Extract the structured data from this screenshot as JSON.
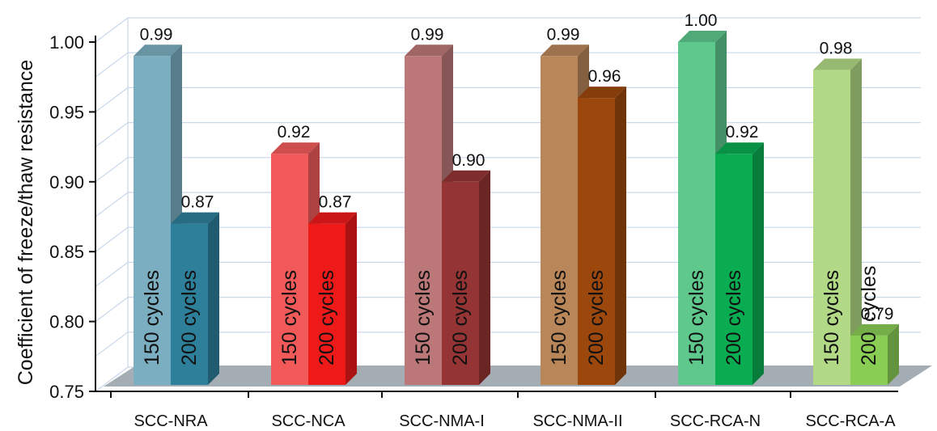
{
  "chart_data": {
    "type": "bar",
    "ylabel": "Coefficient of freeze/thaw resistance",
    "xlabel": "",
    "ylim": [
      0.75,
      1.0
    ],
    "yticks": [
      "0.75",
      "0.80",
      "0.85",
      "0.90",
      "0.95",
      "1.00"
    ],
    "categories": [
      "SCC-NRA",
      "SCC-NCA",
      "SCC-NMA-I",
      "SCC-NMA-II",
      "SCC-RCA-N",
      "SCC-RCA-A"
    ],
    "series": [
      {
        "name": "150 cycles",
        "values": [
          0.99,
          0.92,
          0.99,
          0.99,
          1.0,
          0.98
        ],
        "labels": [
          "0.99",
          "0.92",
          "0.99",
          "0.99",
          "1.00",
          "0.98"
        ]
      },
      {
        "name": "200 cycles",
        "values": [
          0.87,
          0.87,
          0.9,
          0.96,
          0.92,
          0.79
        ],
        "labels": [
          "0.87",
          "0.87",
          "0.90",
          "0.96",
          "0.92",
          "0.79"
        ]
      }
    ],
    "bar_text": {
      "s150": "150 cycles",
      "s200_full": "200 cycles",
      "s200_short": "200",
      "s200_tail": "cycles"
    },
    "colors": {
      "s150": [
        "#7aaec0",
        "#f25a5a",
        "#bc7878",
        "#b98659",
        "#5ec88d",
        "#b2da86"
      ],
      "s200": [
        "#2e7f9a",
        "#ee1a1a",
        "#943434",
        "#9c480d",
        "#0aac52",
        "#8acd55"
      ]
    },
    "grid": true,
    "style": "3d"
  }
}
